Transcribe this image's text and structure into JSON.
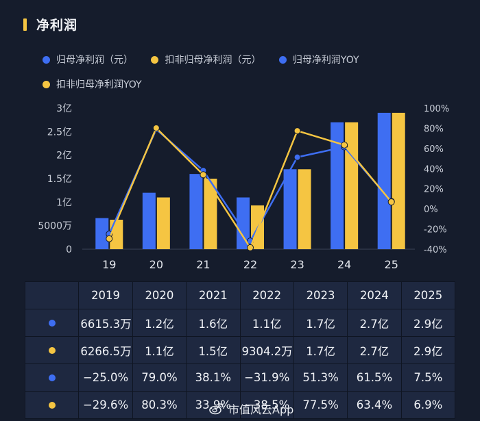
{
  "header": {
    "title": "净利润"
  },
  "legend": [
    {
      "label": "归母净利润（元）",
      "color": "#3e6ef2"
    },
    {
      "label": "扣非归母净利润（元）",
      "color": "#f5c542"
    },
    {
      "label": "归母净利润YOY",
      "color": "#3e6ef2"
    },
    {
      "label": "扣非归母净利润YOY",
      "color": "#f5c542"
    }
  ],
  "chart_data": {
    "type": "bar",
    "title": "净利润",
    "categories": [
      "19",
      "20",
      "21",
      "22",
      "23",
      "24",
      "25"
    ],
    "series": [
      {
        "name": "归母净利润（元）",
        "kind": "bar",
        "axis": "left",
        "color": "#3e6ef2",
        "values": [
          0.66153,
          1.2,
          1.6,
          1.1,
          1.7,
          2.7,
          2.9
        ]
      },
      {
        "name": "扣非归母净利润（元）",
        "kind": "bar",
        "axis": "left",
        "color": "#f5c542",
        "values": [
          0.62665,
          1.1,
          1.5,
          0.93042,
          1.7,
          2.7,
          2.9
        ]
      },
      {
        "name": "归母净利润YOY",
        "kind": "line",
        "axis": "right",
        "color": "#3e6ef2",
        "values": [
          -25.0,
          79.0,
          38.1,
          -31.9,
          51.3,
          61.5,
          7.5
        ]
      },
      {
        "name": "扣非归母净利润YOY",
        "kind": "line",
        "axis": "right",
        "color": "#f5c542",
        "values": [
          -29.6,
          80.3,
          33.9,
          -38.5,
          77.5,
          63.4,
          6.9
        ]
      }
    ],
    "y_left": {
      "unit": "亿",
      "range": [
        0,
        3
      ],
      "ticks": [
        0,
        0.5,
        1,
        1.5,
        2,
        2.5,
        3
      ],
      "tick_labels": [
        "0",
        "5000万",
        "1亿",
        "1.5亿",
        "2亿",
        "2.5亿",
        "3亿"
      ]
    },
    "y_right": {
      "unit": "%",
      "range": [
        -40,
        100
      ],
      "ticks": [
        -40,
        -20,
        0,
        20,
        40,
        60,
        80,
        100
      ],
      "tick_labels": [
        "-40%",
        "-20%",
        "0%",
        "20%",
        "40%",
        "60%",
        "80%",
        "100%"
      ]
    },
    "grid": false,
    "legend_position": "top"
  },
  "table": {
    "years": [
      "2019",
      "2020",
      "2021",
      "2022",
      "2023",
      "2024",
      "2025"
    ],
    "rows": [
      {
        "color": "#3e6ef2",
        "cells": [
          "6615.3万",
          "1.2亿",
          "1.6亿",
          "1.1亿",
          "1.7亿",
          "2.7亿",
          "2.9亿"
        ]
      },
      {
        "color": "#f5c542",
        "cells": [
          "6266.5万",
          "1.1亿",
          "1.5亿",
          "9304.2万",
          "1.7亿",
          "2.7亿",
          "2.9亿"
        ]
      },
      {
        "color": "#3e6ef2",
        "cells": [
          "−25.0%",
          "79.0%",
          "38.1%",
          "−31.9%",
          "51.3%",
          "61.5%",
          "7.5%"
        ]
      },
      {
        "color": "#f5c542",
        "cells": [
          "−29.6%",
          "80.3%",
          "33.9%",
          "−38.5%",
          "77.5%",
          "63.4%",
          "6.9%"
        ]
      }
    ]
  },
  "watermark": {
    "text": "市值风云App",
    "icon": "weibo-icon"
  }
}
